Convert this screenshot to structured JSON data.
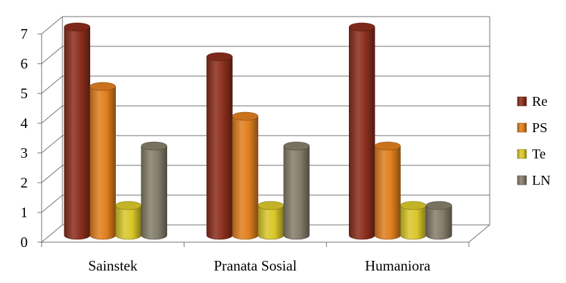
{
  "chart_data": {
    "type": "bar",
    "style": "3d-cylinder",
    "categories": [
      "Sainstek",
      "Pranata Sosial",
      "Humaniora"
    ],
    "series": [
      {
        "name": "Re",
        "values": [
          7,
          6,
          7
        ],
        "color": "#8B2E1C"
      },
      {
        "name": "PS",
        "values": [
          5,
          4,
          3
        ],
        "color": "#E07F1E"
      },
      {
        "name": "Te",
        "values": [
          1,
          1,
          1
        ],
        "color": "#D9C72A"
      },
      {
        "name": "LN",
        "values": [
          3,
          3,
          1
        ],
        "color": "#857D6B"
      }
    ],
    "title": "",
    "xlabel": "",
    "ylabel": "",
    "ylim": [
      0,
      7
    ],
    "yticks": [
      "0",
      "1",
      "2",
      "3",
      "4",
      "5",
      "6",
      "7"
    ],
    "grid": true,
    "legend_position": "right"
  }
}
